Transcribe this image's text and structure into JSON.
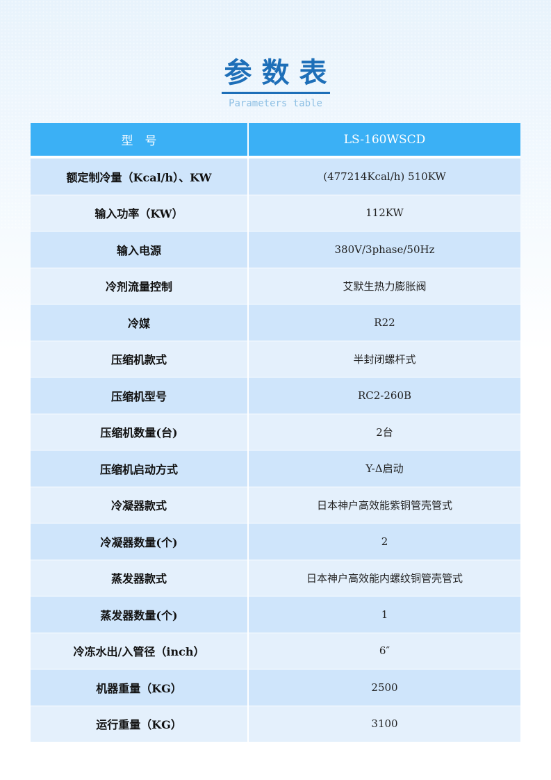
{
  "title": {
    "cn": "参数表",
    "en": "Parameters table"
  },
  "colors": {
    "header": "#3bb0f5",
    "title": "#1e6fb8",
    "row_dark": "#cfe5fb",
    "row_light": "#e4f0fc"
  },
  "header": {
    "key": "型　号",
    "value": "LS-160WSCD"
  },
  "rows": [
    {
      "key": "额定制冷量（Kcal/h）、KW",
      "value": "(477214Kcal/h)  510KW"
    },
    {
      "key": "输入功率（KW）",
      "value": "112KW"
    },
    {
      "key": "输入电源",
      "value": "380V/3phase/50Hz"
    },
    {
      "key": "冷剂流量控制",
      "value": "艾默生热力膨胀阀"
    },
    {
      "key": "冷媒",
      "value": "R22"
    },
    {
      "key": "压缩机款式",
      "value": "半封闭螺杆式"
    },
    {
      "key": "压缩机型号",
      "value": "RC2-260B"
    },
    {
      "key": "压缩机数量(台)",
      "value": "2台"
    },
    {
      "key": "压缩机启动方式",
      "value": "Y-Δ启动"
    },
    {
      "key": "冷凝器款式",
      "value": "日本神户高效能紫铜管壳管式"
    },
    {
      "key": "冷凝器数量(个)",
      "value": "2"
    },
    {
      "key": "蒸发器款式",
      "value": "日本神户高效能内螺纹铜管壳管式"
    },
    {
      "key": "蒸发器数量(个)",
      "value": "1"
    },
    {
      "key": "冷冻水出/入管径（inch）",
      "value": "6″"
    },
    {
      "key": "机器重量（KG）",
      "value": "2500"
    },
    {
      "key": "运行重量（KG）",
      "value": "3100"
    }
  ]
}
